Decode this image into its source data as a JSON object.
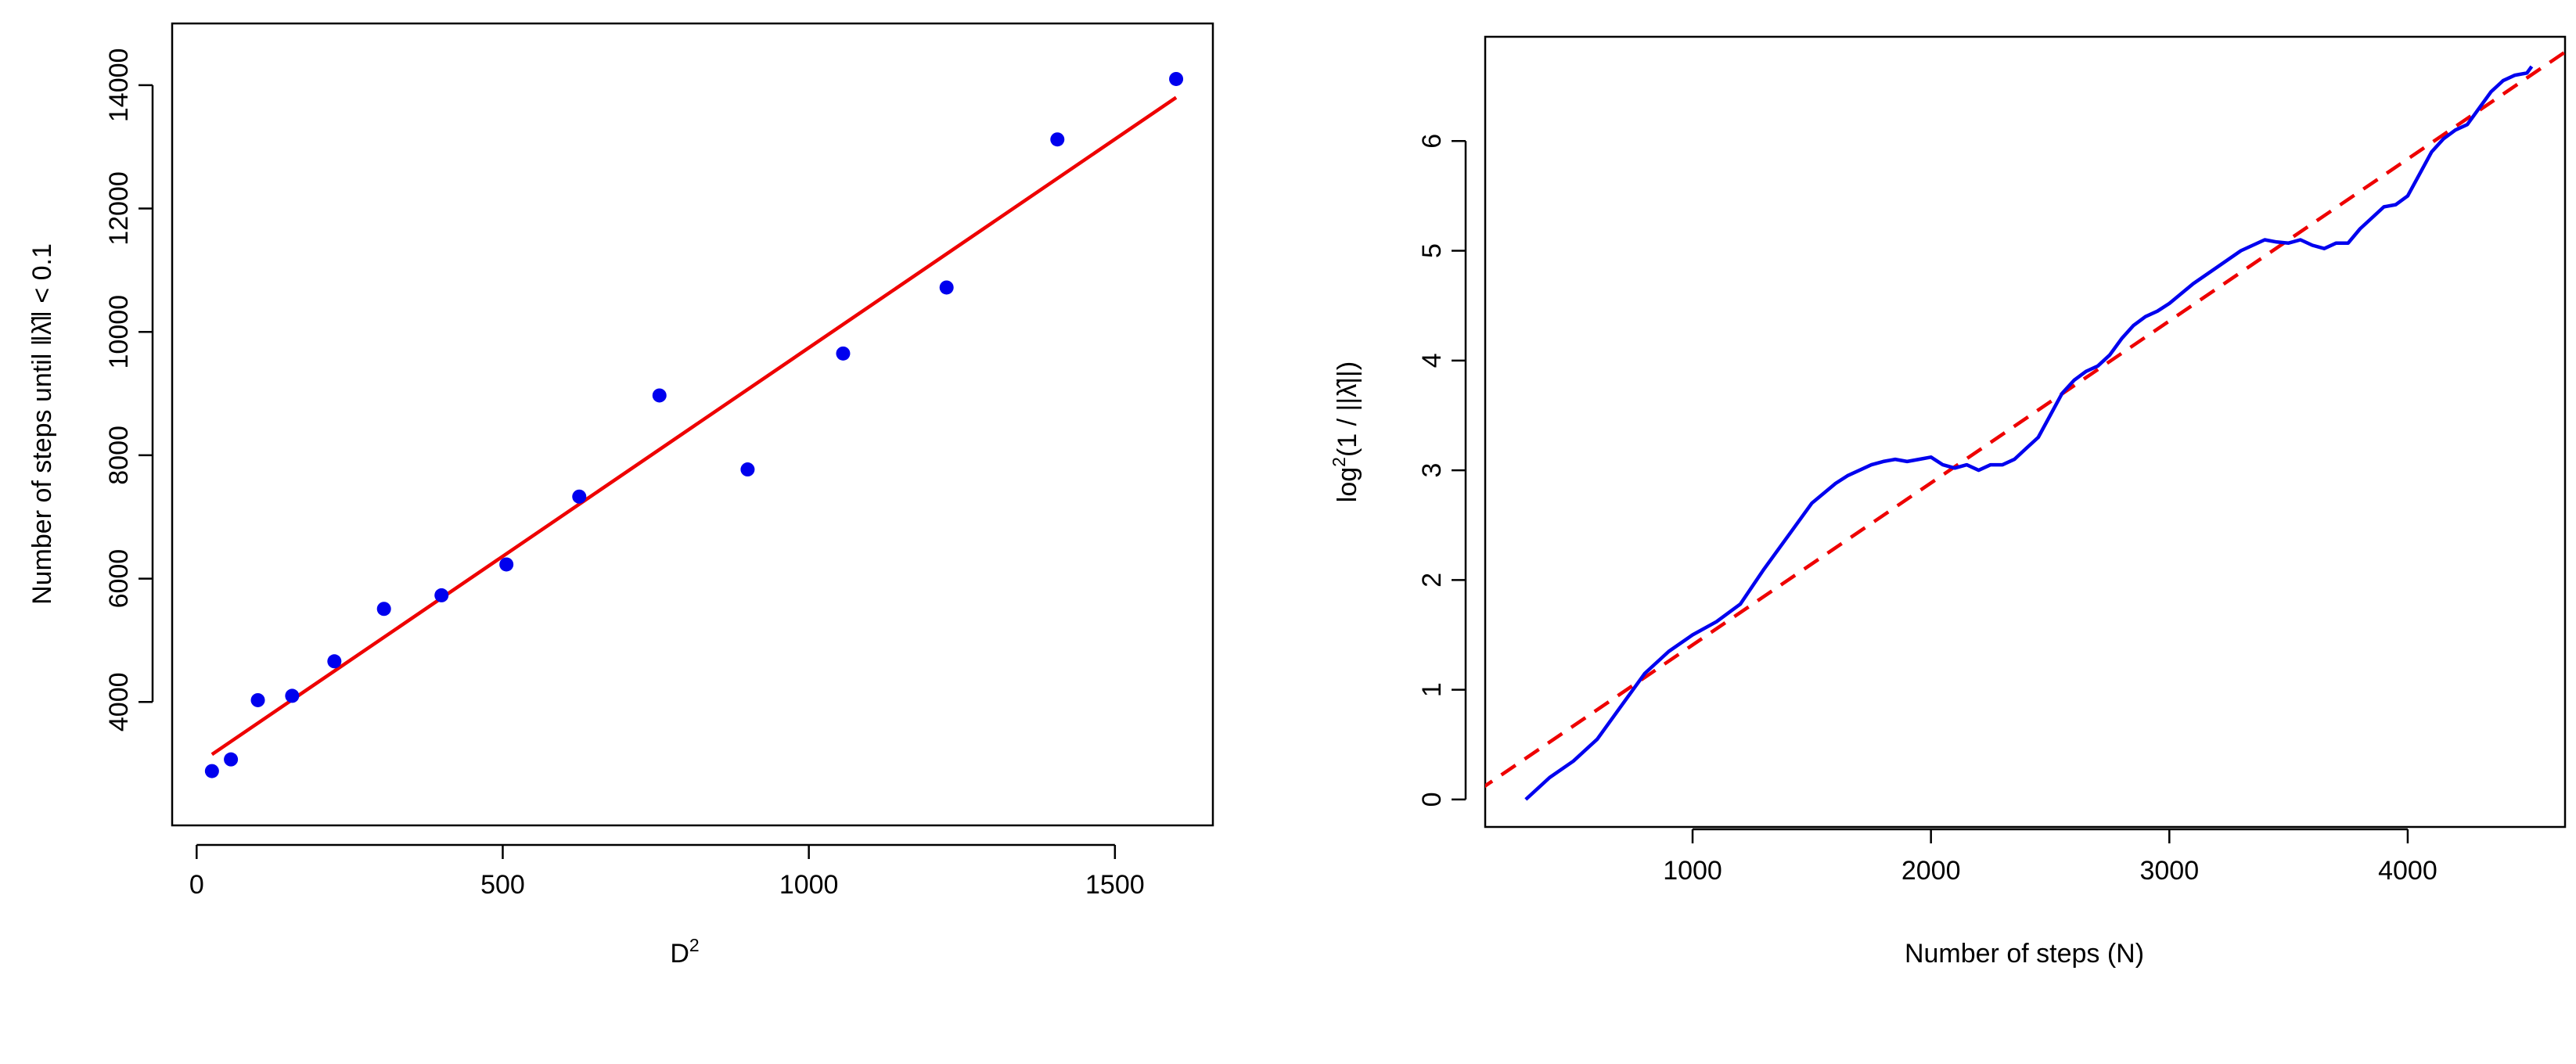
{
  "colors": {
    "points": "#0000ee",
    "fit_line": "#ee0000",
    "curve": "#0000ee",
    "ref_line": "#ee0000",
    "frame": "#000000"
  },
  "chart_data": [
    {
      "type": "scatter",
      "title": "",
      "xlabel": "D",
      "xlabel_sup": "2",
      "ylabel": "Number of steps until ‖λ̂‖ < 0.1",
      "xlim": [
        -40,
        1660
      ],
      "ylim": [
        2000,
        15000
      ],
      "xticks": [
        0,
        500,
        1000,
        1500
      ],
      "yticks": [
        4000,
        6000,
        8000,
        10000,
        12000,
        14000
      ],
      "points": [
        {
          "x": 25,
          "y": 2880
        },
        {
          "x": 56,
          "y": 3070
        },
        {
          "x": 100,
          "y": 4030
        },
        {
          "x": 156,
          "y": 4100
        },
        {
          "x": 225,
          "y": 4660
        },
        {
          "x": 306,
          "y": 5510
        },
        {
          "x": 400,
          "y": 5730
        },
        {
          "x": 506,
          "y": 6230
        },
        {
          "x": 625,
          "y": 7330
        },
        {
          "x": 756,
          "y": 8970
        },
        {
          "x": 900,
          "y": 7770
        },
        {
          "x": 1056,
          "y": 9650
        },
        {
          "x": 1225,
          "y": 10720
        },
        {
          "x": 1406,
          "y": 13120
        },
        {
          "x": 1600,
          "y": 14100
        }
      ],
      "fit_line": {
        "x": [
          25,
          1600
        ],
        "y": [
          3150,
          13800
        ]
      }
    },
    {
      "type": "line",
      "title": "",
      "xlabel": "Number of steps (N)",
      "ylabel_pre": "log",
      "ylabel_sup": "2",
      "ylabel_post": "(1 / ||λ̂||)",
      "xlim": [
        130,
        4660
      ],
      "ylim": [
        -0.25,
        6.95
      ],
      "xticks": [
        1000,
        2000,
        3000,
        4000
      ],
      "yticks": [
        0,
        1,
        2,
        3,
        4,
        5,
        6
      ],
      "series": [
        {
          "style": "solid",
          "x": [
            300,
            400,
            500,
            600,
            700,
            800,
            900,
            1000,
            1100,
            1200,
            1300,
            1400,
            1500,
            1600,
            1650,
            1700,
            1750,
            1800,
            1850,
            1900,
            1950,
            2000,
            2050,
            2100,
            2150,
            2200,
            2250,
            2300,
            2350,
            2400,
            2450,
            2500,
            2550,
            2600,
            2650,
            2700,
            2750,
            2800,
            2850,
            2900,
            2950,
            3000,
            3100,
            3200,
            3300,
            3400,
            3450,
            3500,
            3550,
            3600,
            3650,
            3700,
            3750,
            3800,
            3850,
            3900,
            3950,
            4000,
            4050,
            4100,
            4150,
            4200,
            4250,
            4300,
            4350,
            4400,
            4450,
            4500,
            4520
          ],
          "y": [
            0.0,
            0.2,
            0.35,
            0.55,
            0.85,
            1.15,
            1.35,
            1.5,
            1.62,
            1.78,
            2.1,
            2.4,
            2.7,
            2.88,
            2.95,
            3.0,
            3.05,
            3.08,
            3.1,
            3.08,
            3.1,
            3.12,
            3.05,
            3.02,
            3.05,
            3.0,
            3.05,
            3.05,
            3.1,
            3.2,
            3.3,
            3.5,
            3.7,
            3.82,
            3.9,
            3.95,
            4.05,
            4.2,
            4.32,
            4.4,
            4.45,
            4.52,
            4.7,
            4.85,
            5.0,
            5.1,
            5.08,
            5.07,
            5.1,
            5.05,
            5.02,
            5.07,
            5.07,
            5.2,
            5.3,
            5.4,
            5.42,
            5.5,
            5.7,
            5.9,
            6.02,
            6.1,
            6.15,
            6.3,
            6.45,
            6.55,
            6.6,
            6.62,
            6.68
          ]
        },
        {
          "style": "dashed",
          "x": [
            100,
            4700
          ],
          "y": [
            0.08,
            6.87
          ]
        }
      ]
    }
  ]
}
